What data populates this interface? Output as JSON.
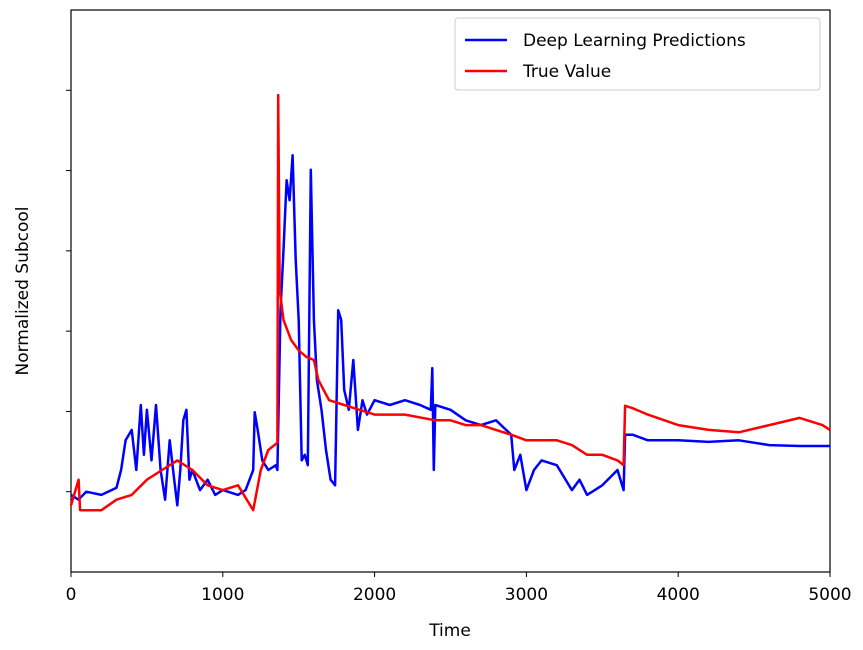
{
  "chart_data": {
    "type": "line",
    "xlabel": "Time",
    "ylabel": "Normalized Subcool",
    "xlim": [
      0,
      5000
    ],
    "xticks": [
      0,
      1000,
      2000,
      3000,
      4000,
      5000
    ],
    "ylim": [
      0,
      7
    ],
    "yticks": [
      1,
      2,
      3,
      4,
      5,
      6
    ],
    "ytick_labels": false,
    "legend": "upper right",
    "series": [
      {
        "name": "Deep Learning Predictions",
        "color": "#0000ff",
        "x": [
          0,
          50,
          100,
          200,
          300,
          330,
          360,
          400,
          430,
          460,
          480,
          500,
          530,
          560,
          590,
          620,
          650,
          680,
          700,
          720,
          740,
          760,
          780,
          800,
          850,
          900,
          950,
          1000,
          1100,
          1150,
          1200,
          1210,
          1230,
          1260,
          1300,
          1350,
          1360,
          1380,
          1400,
          1420,
          1440,
          1460,
          1480,
          1500,
          1520,
          1540,
          1560,
          1580,
          1600,
          1620,
          1650,
          1680,
          1710,
          1740,
          1760,
          1780,
          1800,
          1830,
          1860,
          1890,
          1920,
          1950,
          2000,
          2100,
          2200,
          2300,
          2370,
          2380,
          2390,
          2400,
          2500,
          2600,
          2700,
          2800,
          2900,
          2920,
          2960,
          3000,
          3050,
          3100,
          3200,
          3300,
          3350,
          3400,
          3500,
          3600,
          3640,
          3650,
          3700,
          3800,
          4000,
          4200,
          4400,
          4600,
          4800,
          5000
        ],
        "values": [
          0.96,
          0.9,
          1.0,
          0.96,
          1.05,
          1.27,
          1.64,
          1.77,
          1.27,
          2.08,
          1.46,
          2.02,
          1.39,
          2.08,
          1.27,
          0.9,
          1.64,
          1.15,
          0.83,
          1.27,
          1.89,
          2.02,
          1.15,
          1.27,
          1.02,
          1.15,
          0.96,
          1.02,
          0.96,
          1.02,
          1.27,
          1.99,
          1.77,
          1.39,
          1.27,
          1.33,
          1.27,
          3.26,
          4.01,
          4.88,
          4.63,
          5.19,
          3.89,
          3.14,
          1.39,
          1.46,
          1.33,
          5.01,
          3.14,
          2.39,
          2.02,
          1.52,
          1.15,
          1.08,
          3.26,
          3.14,
          2.27,
          2.02,
          2.64,
          1.77,
          2.14,
          1.96,
          2.14,
          2.08,
          2.14,
          2.08,
          2.02,
          2.54,
          1.27,
          2.08,
          2.02,
          1.89,
          1.83,
          1.89,
          1.71,
          1.27,
          1.46,
          1.02,
          1.27,
          1.39,
          1.33,
          1.02,
          1.15,
          0.96,
          1.08,
          1.27,
          1.02,
          1.71,
          1.71,
          1.64,
          1.64,
          1.62,
          1.64,
          1.58,
          1.57,
          1.57
        ]
      },
      {
        "name": "True Value",
        "color": "#ff0000",
        "x": [
          0,
          50,
          60,
          200,
          300,
          400,
          500,
          600,
          700,
          800,
          900,
          1000,
          1100,
          1200,
          1250,
          1300,
          1360,
          1365,
          1375,
          1400,
          1450,
          1500,
          1550,
          1600,
          1630,
          1700,
          1800,
          1900,
          2000,
          2200,
          2400,
          2500,
          2600,
          2700,
          2800,
          2900,
          3000,
          3100,
          3200,
          3300,
          3400,
          3500,
          3600,
          3640,
          3650,
          3700,
          3800,
          4000,
          4200,
          4400,
          4600,
          4800,
          4950,
          5000
        ],
        "values": [
          0.83,
          1.15,
          0.77,
          0.77,
          0.9,
          0.96,
          1.15,
          1.27,
          1.39,
          1.27,
          1.08,
          1.02,
          1.08,
          0.77,
          1.27,
          1.52,
          1.61,
          5.94,
          3.51,
          3.14,
          2.89,
          2.76,
          2.68,
          2.64,
          2.39,
          2.14,
          2.08,
          2.02,
          1.96,
          1.96,
          1.89,
          1.89,
          1.83,
          1.83,
          1.77,
          1.71,
          1.64,
          1.64,
          1.64,
          1.58,
          1.46,
          1.46,
          1.39,
          1.33,
          2.07,
          2.04,
          1.96,
          1.83,
          1.77,
          1.74,
          1.83,
          1.92,
          1.83,
          1.77
        ]
      }
    ]
  }
}
